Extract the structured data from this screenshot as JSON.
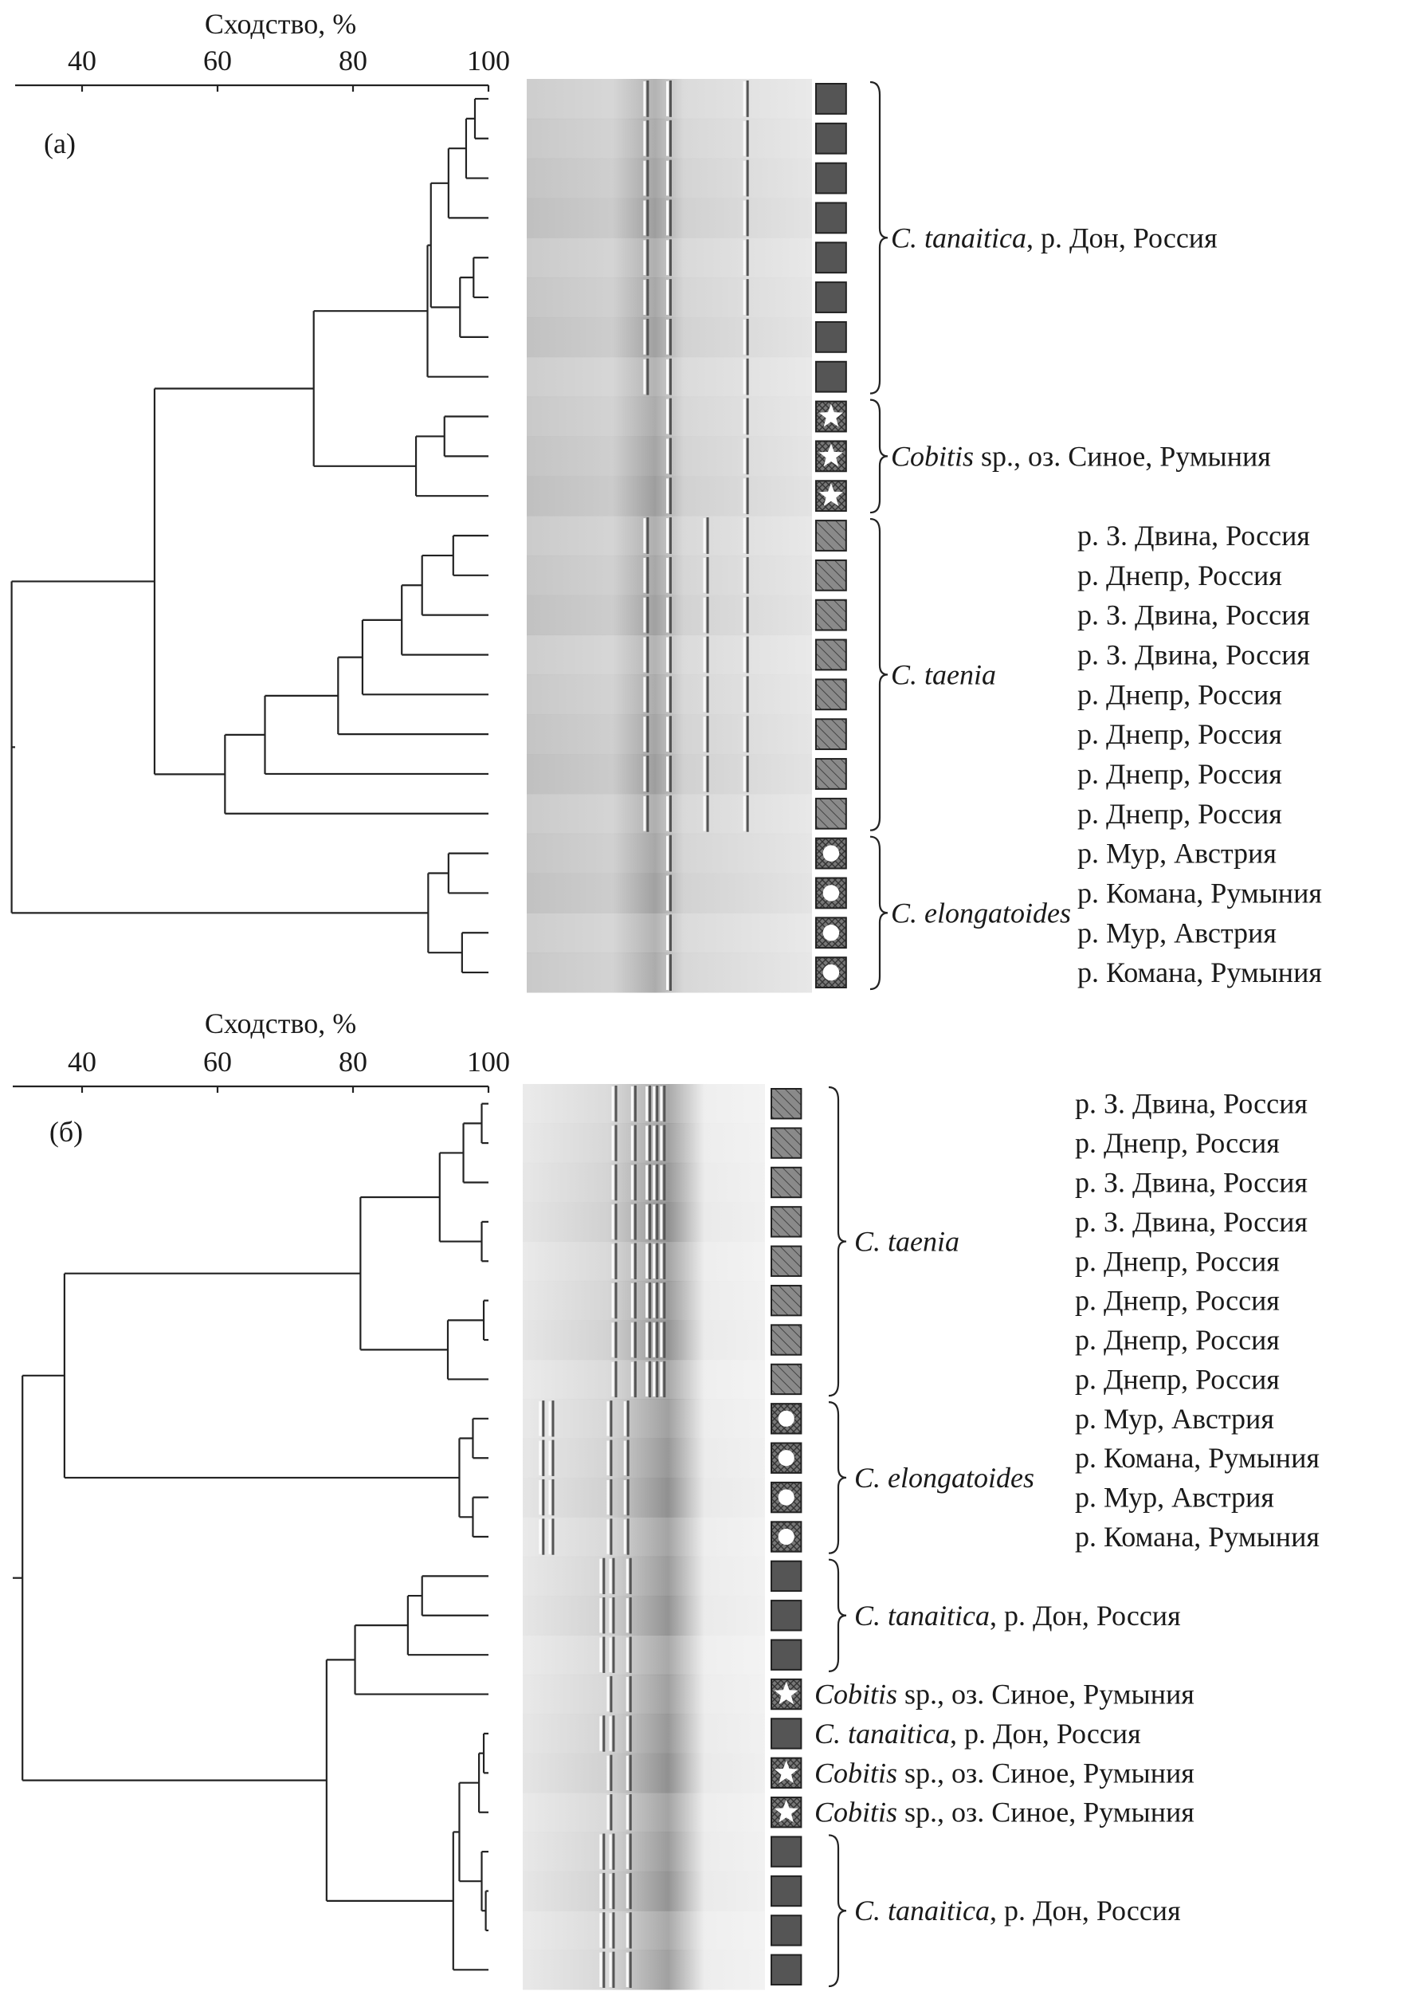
{
  "axis_title": "Сходство, %",
  "chart_data": {
    "type": "dendrogram",
    "xlabel": "Сходство, %",
    "panels": [
      {
        "label": "(а)",
        "ticks": [
          40,
          60,
          80,
          100
        ],
        "xlim": [
          30,
          100
        ],
        "rows": [
          "tan",
          "tan",
          "tan",
          "tan",
          "tan",
          "tan",
          "tan",
          "tan",
          "cob",
          "cob",
          "cob",
          "tae",
          "tae",
          "tae",
          "tae",
          "tae",
          "tae",
          "tae",
          "tae",
          "elo",
          "elo",
          "elo",
          "elo"
        ],
        "locations": [
          "",
          "",
          "",
          "",
          "",
          "",
          "",
          "",
          "",
          "",
          "",
          "р. З. Двина, Россия",
          "р. Днепр, Россия",
          "р. З. Двина, Россия",
          "р. З. Двина, Россия",
          "р. Днепр, Россия",
          "р. Днепр, Россия",
          "р. Днепр, Россия",
          "р. Днепр, Россия",
          "р. Мур, Австрия",
          "р. Комана, Румыния",
          "р. Мур, Австрия",
          "р. Комана, Румыния"
        ],
        "groups": [
          {
            "from": 0,
            "to": 7,
            "brace": true,
            "species": "C. tanaitica",
            "rest": ", р. Дон, Россия"
          },
          {
            "from": 8,
            "to": 10,
            "brace": true,
            "species": "Cobitis",
            "rest": " sp., оз. Синое, Румыния"
          },
          {
            "from": 11,
            "to": 18,
            "brace": true,
            "species": "C. taenia",
            "rest": ""
          },
          {
            "from": 19,
            "to": 22,
            "brace": true,
            "species": "C. elongatoides",
            "rest": ""
          }
        ],
        "tree": {
          "s": 29.6,
          "c": [
            {
              "s": 50.7,
              "c": [
                {
                  "s": 74.2,
                  "c": [
                    {
                      "s": 91,
                      "c": [
                        {
                          "s": 91.5,
                          "c": [
                            {
                              "s": 94.1,
                              "c": [
                                {
                                  "s": 96.7,
                                  "c": [
                                    {
                                      "s": 98,
                                      "c": [
                                        0,
                                        1
                                      ]
                                    },
                                    2
                                  ]
                                },
                                3
                              ]
                            },
                            {
                              "s": 95.8,
                              "c": [
                                {
                                  "s": 97.8,
                                  "c": [
                                    4,
                                    5
                                  ]
                                },
                                6
                              ]
                            }
                          ]
                        },
                        7
                      ]
                    },
                    {
                      "s": 89.3,
                      "c": [
                        {
                          "s": 93.5,
                          "c": [
                            8,
                            9
                          ]
                        },
                        10
                      ]
                    }
                  ]
                },
                {
                  "s": 61.1,
                  "c": [
                    {
                      "s": 67,
                      "c": [
                        {
                          "s": 77.8,
                          "c": [
                            {
                              "s": 81.4,
                              "c": [
                                {
                                  "s": 87.2,
                                  "c": [
                                    {
                                      "s": 90.2,
                                      "c": [
                                        {
                                          "s": 94.8,
                                          "c": [
                                            11,
                                            12
                                          ]
                                        },
                                        13
                                      ]
                                    },
                                    14
                                  ]
                                },
                                15
                              ]
                            },
                            16
                          ]
                        },
                        17
                      ]
                    },
                    18
                  ]
                }
              ]
            },
            {
              "s": 91.1,
              "c": [
                {
                  "s": 94.1,
                  "c": [
                    19,
                    20
                  ]
                },
                {
                  "s": 96.1,
                  "c": [
                    21,
                    22
                  ]
                }
              ]
            }
          ]
        }
      },
      {
        "label": "(б)",
        "ticks": [
          40,
          60,
          80,
          100
        ],
        "xlim": [
          30,
          100
        ],
        "rows": [
          "tae",
          "tae",
          "tae",
          "tae",
          "tae",
          "tae",
          "tae",
          "tae",
          "elo",
          "elo",
          "elo",
          "elo",
          "tan",
          "tan",
          "tan",
          "cob",
          "tan",
          "cob",
          "cob",
          "tan",
          "tan",
          "tan",
          "tan"
        ],
        "locations": [
          "р. З. Двина, Россия",
          "р. Днепр, Россия",
          "р. З. Двина, Россия",
          "р. З. Двина, Россия",
          "р. Днепр, Россия",
          "р. Днепр, Россия",
          "р. Днепр, Россия",
          "р. Днепр, Россия",
          "р. Мур, Австрия",
          "р. Комана, Румыния",
          "р. Мур, Австрия",
          "р. Комана, Румыния",
          "",
          "",
          "",
          "",
          "",
          "",
          "",
          "",
          "",
          "",
          ""
        ],
        "groups": [
          {
            "from": 0,
            "to": 7,
            "brace": true,
            "species": "C. taenia",
            "rest": ""
          },
          {
            "from": 8,
            "to": 11,
            "brace": true,
            "species": "C. elongatoides",
            "rest": ""
          },
          {
            "from": 12,
            "to": 14,
            "brace": true,
            "species": "C. tanaitica",
            "rest": ", р. Дон, Россия"
          },
          {
            "from": 15,
            "to": 15,
            "brace": false,
            "species": "Cobitis",
            "rest": " sp., оз. Синое, Румыния"
          },
          {
            "from": 16,
            "to": 16,
            "brace": false,
            "species": "C. tanaitica",
            "rest": ", р. Дон, Россия"
          },
          {
            "from": 17,
            "to": 17,
            "brace": false,
            "species": "Cobitis",
            "rest": " sp., оз. Синое, Румыния"
          },
          {
            "from": 18,
            "to": 18,
            "brace": false,
            "species": "Cobitis",
            "rest": " sp., оз. Синое, Румыния"
          },
          {
            "from": 19,
            "to": 22,
            "brace": true,
            "species": "C. tanaitica",
            "rest": ", р. Дон, Россия"
          }
        ],
        "tree": {
          "s": 31.2,
          "c": [
            {
              "s": 37.4,
              "c": [
                {
                  "s": 81.1,
                  "c": [
                    {
                      "s": 92.8,
                      "c": [
                        {
                          "s": 96.3,
                          "c": [
                            {
                              "s": 99,
                              "c": [
                                0,
                                1
                              ]
                            },
                            2
                          ]
                        },
                        {
                          "s": 99,
                          "c": [
                            3,
                            4
                          ]
                        }
                      ]
                    },
                    {
                      "s": 94,
                      "c": [
                        {
                          "s": 99.3,
                          "c": [
                            5,
                            6
                          ]
                        },
                        7
                      ]
                    }
                  ]
                },
                {
                  "s": 95.7,
                  "c": [
                    {
                      "s": 97.7,
                      "c": [
                        8,
                        9
                      ]
                    },
                    {
                      "s": 97.7,
                      "c": [
                        10,
                        11
                      ]
                    }
                  ]
                }
              ]
            },
            {
              "s": 76.1,
              "c": [
                {
                  "s": 80.3,
                  "c": [
                    {
                      "s": 88.1,
                      "c": [
                        {
                          "s": 90.2,
                          "c": [
                            12,
                            13
                          ]
                        },
                        14
                      ]
                    },
                    15
                  ]
                },
                {
                  "s": 94.8,
                  "c": [
                    {
                      "s": 95.7,
                      "c": [
                        {
                          "s": 98.6,
                          "c": [
                            {
                              "s": 99.3,
                              "c": [
                                16,
                                17
                              ]
                            },
                            18
                          ]
                        },
                        {
                          "s": 99,
                          "c": [
                            19,
                            {
                              "s": 99.6,
                              "c": [
                                20,
                                21
                              ]
                            }
                          ]
                        }
                      ]
                    },
                    22
                  ]
                }
              ]
            }
          ]
        }
      }
    ]
  },
  "colors": {
    "line": "#222222",
    "tanaitica_symbol": "#555555",
    "hatch": "#777777",
    "gel_light": "#d8d8d8",
    "gel_dark": "#8a8a8a"
  }
}
